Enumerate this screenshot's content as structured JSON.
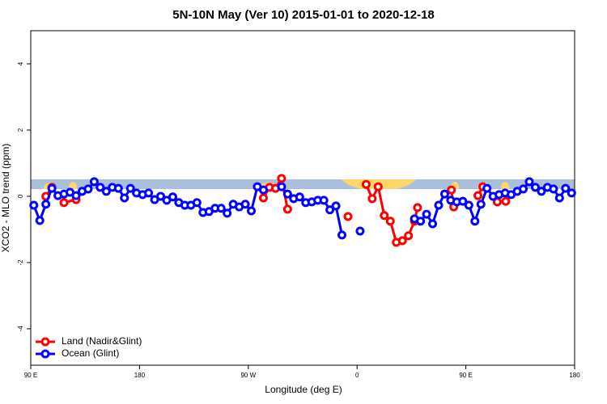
{
  "chart_data": {
    "type": "line",
    "title": "5N-10N May (Ver 10)   2015-01-01 to 2020-12-18",
    "x_label": "Longitude (deg E)",
    "y_label": "XCO2 - MLO trend (ppm)",
    "xlim": [
      90,
      540
    ],
    "ylim": [
      -5.1,
      5.0
    ],
    "xticks": [
      {
        "value": 90,
        "label": "90 E"
      },
      180,
      {
        "value": 270,
        "label": "90 W"
      },
      {
        "value": 360,
        "label": "0"
      },
      {
        "value": 450,
        "label": "90 E"
      },
      {
        "value": 540,
        "label": "180"
      }
    ],
    "yticks": [
      -4,
      -2,
      0,
      2,
      4
    ],
    "legend_position": "bottomleft",
    "series": [
      {
        "name": "Land (Nadir&Glint)",
        "color": "#ff0000",
        "x": [
          102.5,
          107.5,
          112.5,
          117.5,
          127.5,
          202.5,
          282.5,
          287.5,
          292.5,
          297.5,
          302.5,
          327.5,
          352.5,
          362.5,
          367.5,
          372.5,
          377.5,
          382.5,
          387.5,
          392.5,
          397.5,
          402.5,
          407.5,
          410,
          422.5,
          438,
          440,
          452.5,
          460,
          464,
          472.5,
          476,
          483
        ],
        "values": [
          0,
          0.27,
          null,
          -0.19,
          -0.1,
          null,
          -0.05,
          0.27,
          0.24,
          0.54,
          -0.39,
          null,
          -0.61,
          null,
          0.36,
          -0.07,
          0.29,
          -0.58,
          -0.75,
          -1.39,
          -1.34,
          -1.19,
          -0.75,
          -0.34,
          null,
          0.19,
          -0.32,
          null,
          0.02,
          0.29,
          null,
          -0.17,
          -0.15
        ]
      },
      {
        "name": "Ocean (Glint)",
        "color": "#0000ff",
        "x": [
          92.5,
          97.5,
          102.5,
          107.5,
          112.5,
          117.5,
          122.5,
          127.5,
          132.5,
          137.5,
          142.5,
          147.5,
          152.5,
          157.5,
          162.5,
          167.5,
          172.5,
          177.5,
          182.5,
          187.5,
          192.5,
          197.5,
          202.5,
          207.5,
          212.5,
          217.5,
          222.5,
          227.5,
          232.5,
          237.5,
          242.5,
          247.5,
          252.5,
          257.5,
          262.5,
          267.5,
          272.5,
          277.5,
          282.5,
          292.5,
          297.5,
          302.5,
          307.5,
          312.5,
          317.5,
          322.5,
          327.5,
          332.5,
          337.5,
          342.5,
          347.5,
          352.5,
          362.5,
          382.5,
          407.5,
          412.5,
          417.5,
          422.5,
          427.5,
          432.5,
          437.5,
          442.5,
          447.5,
          452.5,
          457.5,
          462.5,
          467.5,
          472.5,
          477.5,
          482.5,
          487.5,
          492.5,
          497.5,
          502.5,
          507.5,
          512.5,
          517.5,
          522.5,
          527.5,
          532.5,
          537.5
        ],
        "values": [
          -0.27,
          -0.73,
          -0.24,
          0.24,
          0.02,
          0.07,
          0.12,
          0.02,
          0.15,
          0.22,
          0.44,
          0.27,
          0.15,
          0.27,
          0.24,
          -0.05,
          0.24,
          0.1,
          0.05,
          0.1,
          -0.1,
          0,
          -0.12,
          -0.02,
          -0.19,
          -0.27,
          -0.27,
          -0.19,
          -0.49,
          -0.46,
          -0.36,
          -0.36,
          -0.51,
          -0.24,
          -0.32,
          -0.24,
          -0.44,
          0.29,
          0.19,
          null,
          0.29,
          0.07,
          -0.07,
          -0.02,
          -0.19,
          -0.17,
          -0.12,
          -0.12,
          -0.41,
          -0.29,
          -1.17,
          null,
          -1.05,
          null,
          -0.68,
          -0.75,
          -0.54,
          -0.83,
          -0.27,
          0.07,
          -0.12,
          -0.17,
          -0.15,
          -0.27,
          -0.75,
          -0.24,
          0.24,
          0,
          0.05,
          0.1,
          0.05,
          0.15,
          0.22,
          0.44,
          0.27,
          0.15,
          0.27,
          0.22,
          -0.05,
          0.24,
          0.1
        ]
      }
    ]
  }
}
